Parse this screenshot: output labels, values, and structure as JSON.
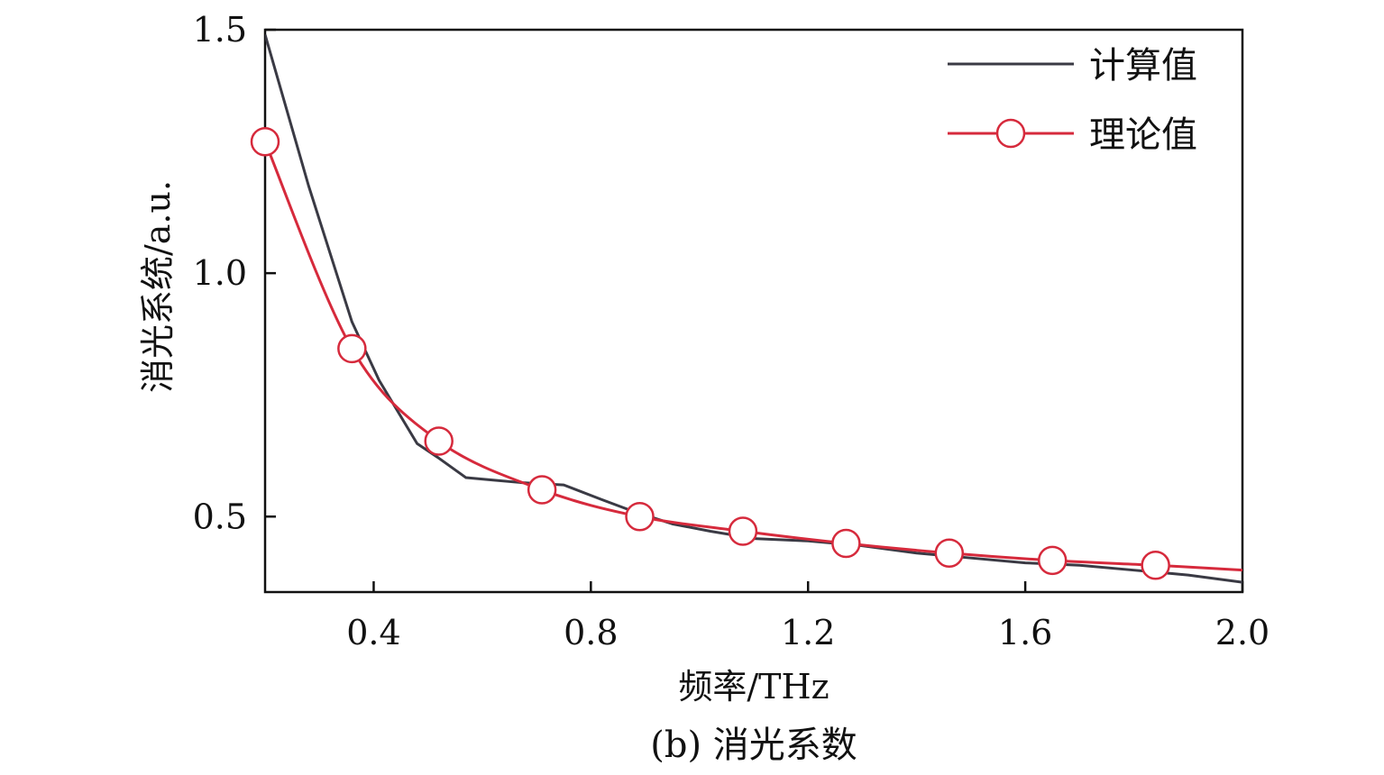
{
  "caption": "(b) 消光系数",
  "colors": {
    "calculated": "#3a3a44",
    "theoretical": "#d62a3c",
    "axis": "#111111",
    "marker_fill": "#ffffff"
  },
  "chart_data": {
    "type": "line",
    "title": "",
    "xlabel": "频率/THz",
    "ylabel": "消光系统/a.u.",
    "xlim": [
      0.2,
      2.0
    ],
    "ylim": [
      0.345,
      1.5
    ],
    "x_ticks": [
      0.4,
      0.8,
      1.2,
      1.6,
      2.0
    ],
    "x_tick_labels": [
      "0.4",
      "0.8",
      "1.2",
      "1.6",
      "2.0"
    ],
    "y_ticks": [
      0.5,
      1.0,
      1.5
    ],
    "y_tick_labels": [
      "0.5",
      "1.0",
      "1.5"
    ],
    "grid": false,
    "legend_position": "top-right",
    "series": [
      {
        "name": "计算值",
        "marker": "none",
        "x": [
          0.2,
          0.28,
          0.36,
          0.41,
          0.48,
          0.52,
          0.57,
          0.62,
          0.67,
          0.75,
          0.82,
          0.88,
          0.95,
          1.02,
          1.1,
          1.2,
          1.3,
          1.4,
          1.5,
          1.6,
          1.7,
          1.8,
          1.9,
          2.0
        ],
        "y": [
          1.49,
          1.18,
          0.9,
          0.78,
          0.65,
          0.62,
          0.58,
          0.575,
          0.57,
          0.565,
          0.535,
          0.51,
          0.485,
          0.47,
          0.455,
          0.45,
          0.44,
          0.425,
          0.415,
          0.405,
          0.4,
          0.39,
          0.38,
          0.365
        ]
      },
      {
        "name": "理论值",
        "marker": "circle",
        "x": [
          0.2,
          0.36,
          0.52,
          0.71,
          0.89,
          1.08,
          1.27,
          1.46,
          1.65,
          1.84,
          2.0
        ],
        "y": [
          1.27,
          0.845,
          0.655,
          0.555,
          0.5,
          0.47,
          0.445,
          0.425,
          0.41,
          0.4,
          0.39
        ],
        "marker_x": [
          0.2,
          0.36,
          0.52,
          0.71,
          0.89,
          1.08,
          1.27,
          1.46,
          1.65,
          1.84
        ],
        "marker_y": [
          1.27,
          0.845,
          0.655,
          0.555,
          0.5,
          0.47,
          0.445,
          0.425,
          0.41,
          0.4
        ]
      }
    ]
  }
}
